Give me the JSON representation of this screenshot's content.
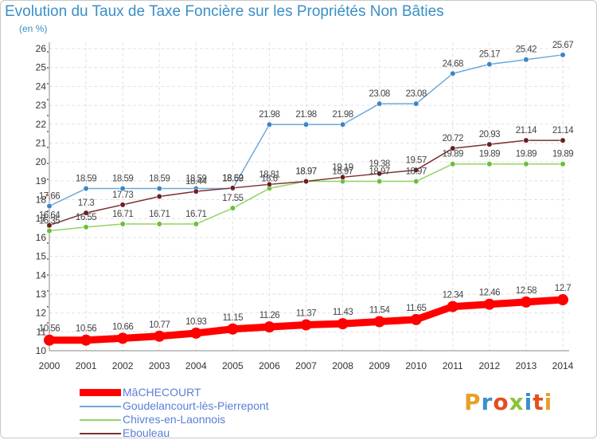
{
  "title": "Evolution du Taux de Taxe Foncière sur les Propriétés Non Bâties",
  "subtitle": "(en %)",
  "logo": {
    "text": "Proxiti",
    "colors": [
      "#e8a02a",
      "#3b8ecf",
      "#e24f1f",
      "#8ac43a",
      "#3b8ecf",
      "#e24f1f",
      "#e8a02a"
    ]
  },
  "chart_data": {
    "type": "line",
    "x": [
      2000,
      2001,
      2002,
      2003,
      2004,
      2005,
      2006,
      2007,
      2008,
      2009,
      2010,
      2011,
      2012,
      2013,
      2014
    ],
    "xlabel": "",
    "ylabel": "",
    "ylim": [
      10,
      26
    ],
    "yticks": [
      10,
      11,
      12,
      13,
      14,
      15,
      16,
      17,
      18,
      19,
      20,
      21,
      22,
      23,
      24,
      25,
      26
    ],
    "grid": true,
    "legend": "bottom-left",
    "series": [
      {
        "name": "MâCHECOURT",
        "color": "#ff0000",
        "width": 9,
        "values": [
          10.56,
          10.56,
          10.66,
          10.77,
          10.93,
          11.15,
          11.26,
          11.37,
          11.43,
          11.54,
          11.65,
          12.34,
          12.46,
          12.58,
          12.7
        ],
        "labels": [
          "10.56",
          "10.56",
          "10.66",
          "10.77",
          "10.93",
          "11.15",
          "11.26",
          "11.37",
          "11.43",
          "11.54",
          "11.65",
          "12.34",
          "12.46",
          "12.58",
          "12.7"
        ]
      },
      {
        "name": "Goudelancourt-lès-Pierrepont",
        "color": "#6fa8dc",
        "marker": "#3d85c6",
        "width": 1.5,
        "values": [
          17.66,
          18.59,
          18.59,
          18.59,
          18.59,
          18.59,
          21.98,
          21.98,
          21.98,
          23.08,
          23.08,
          24.68,
          25.17,
          25.42,
          25.67
        ],
        "labels": [
          "17.66",
          "18.59",
          "18.59",
          "18.59",
          "18.59",
          "18.59",
          "21.98",
          "21.98",
          "21.98",
          "23.08",
          "23.08",
          "24.68",
          "25.17",
          "25.42",
          "25.67"
        ]
      },
      {
        "name": "Chivres-en-Laonnois",
        "color": "#93d362",
        "marker": "#6abf3a",
        "width": 1.5,
        "values": [
          16.35,
          16.55,
          16.71,
          16.71,
          16.71,
          17.55,
          18.6,
          18.97,
          18.97,
          18.97,
          18.97,
          19.89,
          19.89,
          19.89,
          19.89
        ],
        "labels": [
          "16.35",
          "16.55",
          "16.71",
          "16.71",
          "16.71",
          "17.55",
          "18.6",
          "18.97",
          "18.97",
          "18.97",
          "18.97",
          "19.89",
          "19.89",
          "19.89",
          "19.89"
        ]
      },
      {
        "name": "Ebouleau",
        "color": "#7b3033",
        "marker": "#6b1f22",
        "width": 1.5,
        "values": [
          16.64,
          17.3,
          17.73,
          18.17,
          18.44,
          18.62,
          18.81,
          18.97,
          19.19,
          19.38,
          19.57,
          20.72,
          20.93,
          21.14,
          21.14
        ],
        "labels": [
          "16.64",
          "17.3",
          "17.73",
          "",
          "18.44",
          "18.62",
          "18.81",
          "18.97",
          "19.19",
          "19.38",
          "19.57",
          "20.72",
          "20.93",
          "21.14",
          "21.14"
        ]
      }
    ]
  }
}
